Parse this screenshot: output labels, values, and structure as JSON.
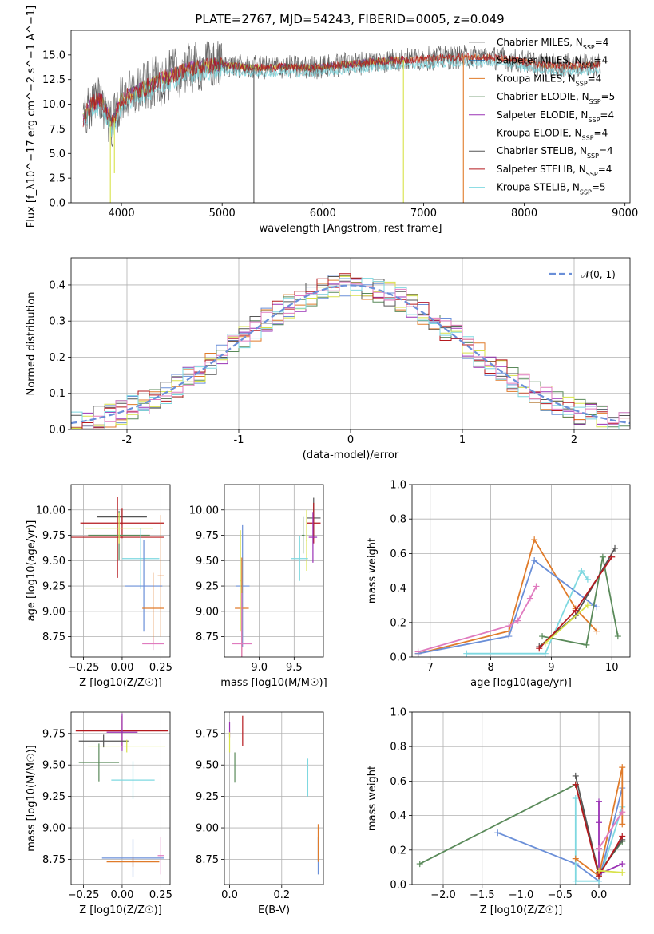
{
  "figure": {
    "title": "PLATE=2767, MJD=54243, FIBERID=0005, z=0.049"
  },
  "colors": {
    "Chabrier MILES": "#999999",
    "Salpeter MILES": "#1f77b4",
    "Kroupa MILES": "#e07b2a",
    "Chabrier ELODIE": "#5a8a5a",
    "Salpeter ELODIE": "#9a32b5",
    "Kroupa ELODIE": "#d8e24a",
    "Chabrier STELIB": "#555555",
    "Salpeter STELIB": "#b5191e",
    "Kroupa STELIB": "#7ed8e0",
    "Model blue": "#6a8fd8",
    "Model pink": "#e07bbf",
    "normal curve": "#6a8fd8"
  },
  "chart_data": [
    {
      "id": "spectrum",
      "type": "line",
      "xlabel": "wavelength [Angstrom, rest frame]",
      "ylabel": "Flux [f_λ10^−17 erg cm^−2 s^−1 A^−1]",
      "xlim": [
        3500,
        9050
      ],
      "ylim": [
        0,
        17.5
      ],
      "xticks": [
        4000,
        5000,
        6000,
        7000,
        8000,
        9000
      ],
      "yticks": [
        0.0,
        2.5,
        5.0,
        7.5,
        10.0,
        12.5,
        15.0
      ],
      "grid": false,
      "legend_position": "right",
      "legend": [
        {
          "label": "Chabrier MILES, N",
          "sub": "SSP",
          "tail": "=4",
          "color_key": "Chabrier MILES"
        },
        {
          "label": "Salpeter MILES, N",
          "sub": "SSP",
          "tail": "=4",
          "color_key": "Salpeter MILES"
        },
        {
          "label": "Kroupa MILES, N",
          "sub": "SSP",
          "tail": "=4",
          "color_key": "Kroupa MILES"
        },
        {
          "label": "Chabrier ELODIE, N",
          "sub": "SSP",
          "tail": "=5",
          "color_key": "Chabrier ELODIE"
        },
        {
          "label": "Salpeter ELODIE, N",
          "sub": "SSP",
          "tail": "=4",
          "color_key": "Salpeter ELODIE"
        },
        {
          "label": "Kroupa ELODIE, N",
          "sub": "SSP",
          "tail": "=4",
          "color_key": "Kroupa ELODIE"
        },
        {
          "label": "Chabrier STELIB, N",
          "sub": "SSP",
          "tail": "=4",
          "color_key": "Chabrier STELIB"
        },
        {
          "label": "Salpeter STELIB, N",
          "sub": "SSP",
          "tail": "=4",
          "color_key": "Salpeter STELIB"
        },
        {
          "label": "Kroupa STELIB, N",
          "sub": "SSP",
          "tail": "=5",
          "color_key": "Kroupa STELIB"
        }
      ],
      "continuum": [
        [
          3620,
          8.5
        ],
        [
          3700,
          10
        ],
        [
          3800,
          10.5
        ],
        [
          3900,
          8
        ],
        [
          3950,
          9
        ],
        [
          4000,
          10.5
        ],
        [
          4200,
          11.5
        ],
        [
          4400,
          12.5
        ],
        [
          4600,
          13.4
        ],
        [
          4800,
          13.8
        ],
        [
          5000,
          14.0
        ],
        [
          5200,
          13.8
        ],
        [
          5400,
          13.7
        ],
        [
          5600,
          13.8
        ],
        [
          5800,
          13.7
        ],
        [
          6000,
          13.8
        ],
        [
          6200,
          14.0
        ],
        [
          6400,
          14.2
        ],
        [
          6600,
          14.4
        ],
        [
          6800,
          14.5
        ],
        [
          7000,
          14.6
        ],
        [
          7200,
          14.7
        ],
        [
          7400,
          14.8
        ],
        [
          7600,
          14.8
        ],
        [
          7800,
          14.6
        ],
        [
          8000,
          14.3
        ],
        [
          8200,
          14.0
        ],
        [
          8400,
          13.9
        ],
        [
          8600,
          13.9
        ],
        [
          8760,
          14.0
        ]
      ],
      "absorption_lines": [
        {
          "x": 3890,
          "depth_to": 0.0,
          "color_key": "Kroupa ELODIE"
        },
        {
          "x": 3930,
          "depth_to": 3.0,
          "color_key": "Kroupa ELODIE"
        },
        {
          "x": 5315,
          "depth_to": 0.0,
          "color_key": "Chabrier STELIB"
        },
        {
          "x": 6800,
          "depth_to": 0.0,
          "color_key": "Kroupa ELODIE"
        },
        {
          "x": 7395,
          "depth_to": 0.0,
          "color_key": "Kroupa MILES"
        }
      ]
    },
    {
      "id": "residuals",
      "type": "histogram",
      "xlabel": "(data-model)/error",
      "ylabel": "Normed distribution",
      "xlim": [
        -2.5,
        2.5
      ],
      "ylim": [
        0,
        0.475
      ],
      "xticks": [
        -2,
        -1,
        0,
        1,
        2
      ],
      "yticks": [
        0.0,
        0.1,
        0.2,
        0.3,
        0.4
      ],
      "grid": true,
      "bin_width": 0.1,
      "legend_position": "top-right",
      "legend": [
        {
          "label": "𝒩(0, 1)",
          "color_key": "normal curve",
          "dashed": true
        }
      ],
      "series_colors": [
        "Model blue",
        "Kroupa MILES",
        "Chabrier ELODIE",
        "Salpeter ELODIE",
        "Kroupa ELODIE",
        "Chabrier STELIB",
        "Salpeter STELIB",
        "Kroupa STELIB",
        "Model pink"
      ]
    },
    {
      "id": "age-vs-Z",
      "type": "scatter",
      "xlabel": "Z [log10(Z/Z☉)]",
      "ylabel": "age  [log10(age/yr)]",
      "xlim": [
        -0.33,
        0.31
      ],
      "ylim": [
        8.55,
        10.25
      ],
      "xticks": [
        -0.25,
        0.0,
        0.25
      ],
      "xticklabels": [
        "−0.25",
        "0.00",
        "0.25"
      ],
      "yticks": [
        8.75,
        9.0,
        9.25,
        9.5,
        9.75,
        10.0
      ],
      "yticklabels": [
        "8.75",
        "9.00",
        "9.25",
        "9.50",
        "9.75",
        "10.00"
      ],
      "grid": true,
      "points": [
        {
          "x": 0.0,
          "y": 9.93,
          "xerr": 0.16,
          "yerr": 0.08,
          "c": "Chabrier STELIB"
        },
        {
          "x": 0.0,
          "y": 9.87,
          "xerr": 0.27,
          "yerr": 0.15,
          "c": "Salpeter STELIB"
        },
        {
          "x": -0.03,
          "y": 9.73,
          "xerr": 0.3,
          "yerr": 0.4,
          "c": "Salpeter STELIB"
        },
        {
          "x": -0.02,
          "y": 9.75,
          "xerr": 0.2,
          "yerr": 0.24,
          "c": "Chabrier ELODIE"
        },
        {
          "x": -0.02,
          "y": 9.82,
          "xerr": 0.22,
          "yerr": 0.15,
          "c": "Kroupa ELODIE"
        },
        {
          "x": 0.12,
          "y": 9.52,
          "xerr": 0.12,
          "yerr": 0.3,
          "c": "Kroupa STELIB"
        },
        {
          "x": 0.14,
          "y": 9.25,
          "xerr": 0.12,
          "yerr": 0.45,
          "c": "Model blue"
        },
        {
          "x": 0.2,
          "y": 9.03,
          "xerr": 0.07,
          "yerr": 0.35,
          "c": "Kroupa MILES"
        },
        {
          "x": 0.2,
          "y": 8.68,
          "xerr": 0.07,
          "yerr": 0.06,
          "c": "Model pink"
        },
        {
          "x": 0.25,
          "y": 9.35,
          "xerr": 0.02,
          "yerr": 0.6,
          "c": "Kroupa MILES"
        }
      ]
    },
    {
      "id": "age-vs-mass",
      "type": "scatter",
      "xlabel": "mass [log10(M/M☉)]",
      "xlim": [
        8.5,
        9.92
      ],
      "ylim": [
        8.55,
        10.25
      ],
      "xticks": [
        9.0,
        9.5
      ],
      "xticklabels": [
        "9.0",
        "9.5"
      ],
      "yticks": [
        8.75,
        9.0,
        9.25,
        9.5,
        9.75,
        10.0
      ],
      "yticklabels": [
        "8.75",
        "9.00",
        "9.25",
        "9.50",
        "9.75",
        "10.00"
      ],
      "grid": true,
      "points": [
        {
          "x": 9.78,
          "y": 9.92,
          "xerr": 0.1,
          "yerr": 0.2,
          "c": "Chabrier STELIB"
        },
        {
          "x": 9.78,
          "y": 9.87,
          "xerr": 0.1,
          "yerr": 0.2,
          "c": "Salpeter STELIB"
        },
        {
          "x": 9.77,
          "y": 9.73,
          "xerr": 0.06,
          "yerr": 0.25,
          "c": "Salpeter ELODIE"
        },
        {
          "x": 9.63,
          "y": 9.75,
          "xerr": 0.02,
          "yerr": 0.18,
          "c": "Chabrier ELODIE"
        },
        {
          "x": 9.68,
          "y": 9.7,
          "xerr": 0.01,
          "yerr": 0.3,
          "c": "Kroupa ELODIE"
        },
        {
          "x": 9.58,
          "y": 9.52,
          "xerr": 0.12,
          "yerr": 0.22,
          "c": "Kroupa STELIB"
        },
        {
          "x": 8.76,
          "y": 9.25,
          "xerr": 0.1,
          "yerr": 0.6,
          "c": "Model blue"
        },
        {
          "x": 8.75,
          "y": 9.03,
          "xerr": 0.1,
          "yerr": 0.5,
          "c": "Kroupa MILES"
        },
        {
          "x": 8.75,
          "y": 8.68,
          "xerr": 0.14,
          "yerr": 0.5,
          "c": "Model pink"
        },
        {
          "x": 8.73,
          "y": 9.3,
          "xerr": 0.01,
          "yerr": 0.5,
          "c": "Kroupa ELODIE"
        }
      ]
    },
    {
      "id": "weight-vs-age",
      "type": "line",
      "xlabel": "age  [log10(age/yr)]",
      "ylabel": "mass weight",
      "xlim": [
        6.7,
        10.3
      ],
      "ylim": [
        0,
        1
      ],
      "xticks": [
        7,
        8,
        9,
        10
      ],
      "yticks": [
        0.0,
        0.2,
        0.4,
        0.6,
        0.8,
        1.0
      ],
      "grid": true,
      "series": [
        {
          "c": "Kroupa MILES",
          "points": [
            [
              6.8,
              0.02
            ],
            [
              8.3,
              0.15
            ],
            [
              8.72,
              0.68
            ],
            [
              9.4,
              0.28
            ],
            [
              9.75,
              0.15
            ]
          ]
        },
        {
          "c": "Model blue",
          "points": [
            [
              6.8,
              0.02
            ],
            [
              8.3,
              0.12
            ],
            [
              8.72,
              0.56
            ],
            [
              9.7,
              0.3
            ],
            [
              9.75,
              0.29
            ]
          ]
        },
        {
          "c": "Model pink",
          "points": [
            [
              6.8,
              0.03
            ],
            [
              8.3,
              0.18
            ],
            [
              8.45,
              0.21
            ],
            [
              8.65,
              0.34
            ],
            [
              8.75,
              0.41
            ]
          ]
        },
        {
          "c": "Kroupa STELIB",
          "points": [
            [
              7.6,
              0.02
            ],
            [
              8.9,
              0.02
            ],
            [
              9.5,
              0.5
            ],
            [
              9.6,
              0.45
            ]
          ]
        },
        {
          "c": "Chabrier ELODIE",
          "points": [
            [
              8.85,
              0.12
            ],
            [
              9.58,
              0.07
            ],
            [
              9.85,
              0.58
            ],
            [
              10.1,
              0.12
            ]
          ]
        },
        {
          "c": "Chabrier STELIB",
          "points": [
            [
              8.8,
              0.06
            ],
            [
              9.4,
              0.24
            ],
            [
              10.05,
              0.63
            ]
          ]
        },
        {
          "c": "Salpeter STELIB",
          "points": [
            [
              8.8,
              0.05
            ],
            [
              9.4,
              0.27
            ],
            [
              10.0,
              0.58
            ]
          ]
        },
        {
          "c": "Kroupa ELODIE",
          "points": [
            [
              8.9,
              0.08
            ],
            [
              9.6,
              0.3
            ]
          ]
        }
      ]
    },
    {
      "id": "mass-vs-Z",
      "type": "scatter",
      "xlabel": "Z [log10(Z/Z☉)]",
      "ylabel": "mass [log10(M/M☉)]",
      "xlim": [
        -0.33,
        0.31
      ],
      "ylim": [
        8.55,
        9.92
      ],
      "xticks": [
        -0.25,
        0.0,
        0.25
      ],
      "xticklabels": [
        "−0.25",
        "0.00",
        "0.25"
      ],
      "yticks": [
        8.75,
        9.0,
        9.25,
        9.5,
        9.75
      ],
      "yticklabels": [
        "8.75",
        "9.00",
        "9.25",
        "9.50",
        "9.75"
      ],
      "grid": true,
      "points": [
        {
          "x": 0.0,
          "y": 9.77,
          "xerr": 0.3,
          "yerr": 0.12,
          "c": "Salpeter STELIB"
        },
        {
          "x": 0.0,
          "y": 9.76,
          "xerr": 0.1,
          "yerr": 0.15,
          "c": "Salpeter ELODIE"
        },
        {
          "x": -0.12,
          "y": 9.69,
          "xerr": 0.16,
          "yerr": 0.05,
          "c": "Chabrier STELIB"
        },
        {
          "x": 0.03,
          "y": 9.65,
          "xerr": 0.25,
          "yerr": 0.05,
          "c": "Kroupa ELODIE"
        },
        {
          "x": -0.15,
          "y": 9.52,
          "xerr": 0.13,
          "yerr": 0.15,
          "c": "Chabrier ELODIE"
        },
        {
          "x": 0.07,
          "y": 9.38,
          "xerr": 0.14,
          "yerr": 0.15,
          "c": "Kroupa STELIB"
        },
        {
          "x": 0.07,
          "y": 8.76,
          "xerr": 0.2,
          "yerr": 0.15,
          "c": "Model blue"
        },
        {
          "x": 0.07,
          "y": 8.73,
          "xerr": 0.17,
          "yerr": 0.04,
          "c": "Kroupa MILES"
        },
        {
          "x": 0.25,
          "y": 8.78,
          "xerr": 0.02,
          "yerr": 0.15,
          "c": "Model pink"
        }
      ]
    },
    {
      "id": "mass-vs-EBV",
      "type": "scatter",
      "xlabel": "E(B-V)",
      "xlim": [
        -0.02,
        0.36
      ],
      "ylim": [
        8.55,
        9.92
      ],
      "xticks": [
        0.0,
        0.2
      ],
      "xticklabels": [
        "0.0",
        "0.2"
      ],
      "yticks": [
        8.75,
        9.0,
        9.25,
        9.5,
        9.75
      ],
      "yticklabels": [
        "8.75",
        "9.00",
        "9.25",
        "9.50",
        "9.75"
      ],
      "grid": true,
      "points": [
        {
          "x": 0.05,
          "y": 9.77,
          "xerr": 0.0,
          "yerr": 0.12,
          "c": "Salpeter STELIB"
        },
        {
          "x": 0.0,
          "y": 9.78,
          "xerr": 0.0,
          "yerr": 0.06,
          "c": "Salpeter ELODIE"
        },
        {
          "x": 0.0,
          "y": 9.68,
          "xerr": 0.0,
          "yerr": 0.08,
          "c": "Kroupa ELODIE"
        },
        {
          "x": 0.02,
          "y": 9.48,
          "xerr": 0.0,
          "yerr": 0.12,
          "c": "Chabrier ELODIE"
        },
        {
          "x": 0.3,
          "y": 9.4,
          "xerr": 0.0,
          "yerr": 0.15,
          "c": "Kroupa STELIB"
        },
        {
          "x": 0.34,
          "y": 8.78,
          "xerr": 0.0,
          "yerr": 0.15,
          "c": "Model blue"
        },
        {
          "x": 0.34,
          "y": 8.88,
          "xerr": 0.0,
          "yerr": 0.15,
          "c": "Kroupa MILES"
        }
      ]
    },
    {
      "id": "weight-vs-Z",
      "type": "line",
      "xlabel": "Z [log10(Z/Z☉)]",
      "ylabel": "mass weight",
      "xlim": [
        -2.4,
        0.4
      ],
      "ylim": [
        0,
        1
      ],
      "xticks": [
        -2.0,
        -1.5,
        -1.0,
        -0.5,
        0.0
      ],
      "xticklabels": [
        "−2.0",
        "−1.5",
        "−1.0",
        "−0.5",
        "0.0"
      ],
      "yticks": [
        0.0,
        0.2,
        0.4,
        0.6,
        0.8,
        1.0
      ],
      "grid": true,
      "series": [
        {
          "c": "Chabrier ELODIE",
          "points": [
            [
              -2.3,
              0.12
            ],
            [
              -0.3,
              0.58
            ],
            [
              0.0,
              0.07
            ],
            [
              0.3,
              0.25
            ]
          ]
        },
        {
          "c": "Model blue",
          "points": [
            [
              -1.3,
              0.3
            ],
            [
              -0.3,
              0.12
            ],
            [
              0.0,
              0.02
            ],
            [
              0.3,
              0.56
            ]
          ]
        },
        {
          "c": "Kroupa STELIB",
          "points": [
            [
              -0.3,
              0.5
            ],
            [
              -0.3,
              0.02
            ],
            [
              0.0,
              0.02
            ],
            [
              0.3,
              0.45
            ]
          ]
        },
        {
          "c": "Chabrier STELIB",
          "points": [
            [
              -0.3,
              0.63
            ],
            [
              0.0,
              0.06
            ],
            [
              0.3,
              0.26
            ]
          ]
        },
        {
          "c": "Salpeter ELODIE",
          "points": [
            [
              0.0,
              0.48
            ],
            [
              0.0,
              0.36
            ],
            [
              0.0,
              0.06
            ],
            [
              0.3,
              0.12
            ]
          ]
        },
        {
          "c": "Kroupa MILES",
          "points": [
            [
              -0.3,
              0.15
            ],
            [
              0.0,
              0.05
            ],
            [
              0.3,
              0.68
            ],
            [
              0.3,
              0.35
            ]
          ]
        },
        {
          "c": "Salpeter STELIB",
          "points": [
            [
              -0.3,
              0.58
            ],
            [
              0.0,
              0.05
            ],
            [
              0.3,
              0.28
            ]
          ]
        },
        {
          "c": "Model pink",
          "points": [
            [
              0.0,
              0.21
            ],
            [
              0.3,
              0.42
            ]
          ]
        },
        {
          "c": "Kroupa ELODIE",
          "points": [
            [
              0.0,
              0.08
            ],
            [
              0.3,
              0.07
            ]
          ]
        }
      ]
    }
  ]
}
